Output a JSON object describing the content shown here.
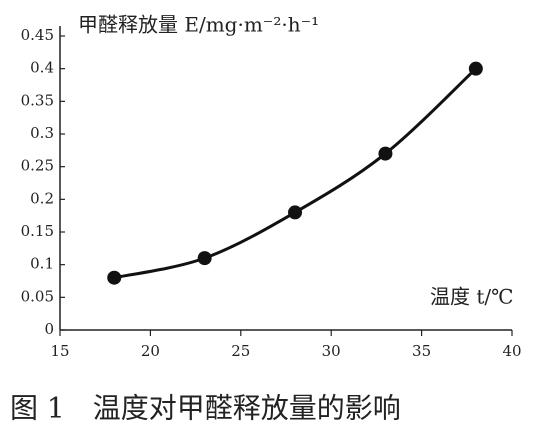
{
  "chart_data": {
    "type": "line",
    "y_label": "甲醛释放量 E/mg·m⁻²·h⁻¹",
    "x_label": "温度 t/℃",
    "caption": "图 1　温度对甲醛释放量的影响",
    "x": [
      18,
      23,
      28,
      33,
      38
    ],
    "series": [
      {
        "color": "#111111",
        "values": [
          0.08,
          0.11,
          0.18,
          0.27,
          0.4
        ]
      }
    ],
    "xlim": [
      15,
      40
    ],
    "xticks": [
      15,
      20,
      25,
      30,
      35,
      40
    ],
    "ylim": [
      0,
      0.45
    ],
    "yticks": [
      0,
      0.05,
      0.1,
      0.15,
      0.2,
      0.25,
      0.3,
      0.35,
      0.4,
      0.45
    ],
    "grid": false
  }
}
